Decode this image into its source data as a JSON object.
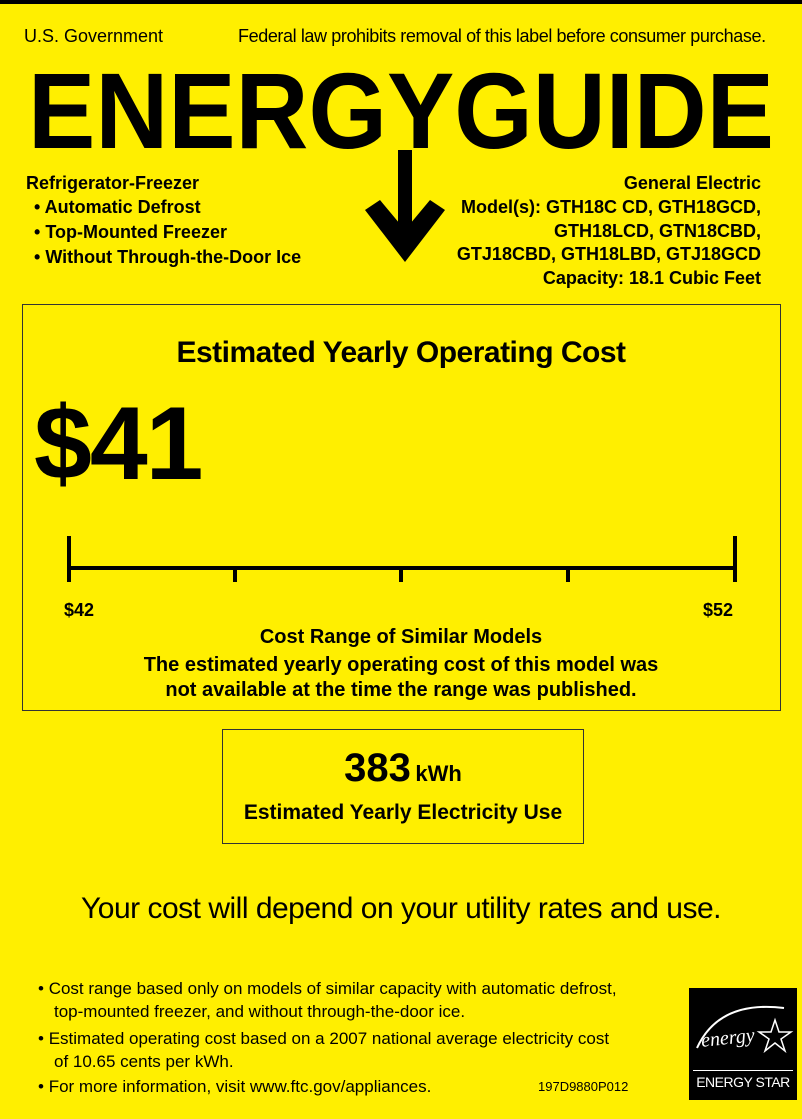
{
  "header": {
    "government": "U.S. Government",
    "notice": "Federal law prohibits removal of this label before consumer purchase.",
    "title": "ENERGYGUIDE"
  },
  "product": {
    "type": "Refrigerator-Freezer",
    "features": [
      "Automatic Defrost",
      "Top-Mounted Freezer",
      "Without Through-the-Door Ice"
    ],
    "manufacturer": "General Electric",
    "models_lines": [
      "Model(s): GTH18C CD, GTH18GCD,",
      "GTH18LCD, GTN18CBD,",
      "GTJ18CBD, GTH18LBD, GTJ18GCD"
    ],
    "capacity": "Capacity: 18.1 Cubic Feet"
  },
  "cost": {
    "heading": "Estimated Yearly Operating Cost",
    "value": "$41",
    "range_min": "$42",
    "range_max": "$52",
    "range_title": "Cost Range of Similar Models",
    "range_note_1": "The estimated yearly operating cost of this model was",
    "range_note_2": "not available at the time the range was published."
  },
  "electricity": {
    "value": "383",
    "unit": "kWh",
    "label": "Estimated Yearly Electricity Use"
  },
  "disclaimer": "Your cost will depend on your utility rates and use.",
  "footnotes": [
    [
      "Cost range based only on models of similar capacity with automatic defrost,",
      "top-mounted freezer, and without through-the-door ice."
    ],
    [
      "Estimated operating cost based on a 2007 national average electricity cost",
      "of 10.65 cents per kWh."
    ],
    [
      "For more information, visit www.ftc.gov/appliances."
    ]
  ],
  "label_code": "197D9880P012",
  "energy_star": {
    "script": "energy",
    "label": "ENERGY STAR"
  },
  "colors": {
    "background": "#FFEF00",
    "ink": "#000000"
  }
}
